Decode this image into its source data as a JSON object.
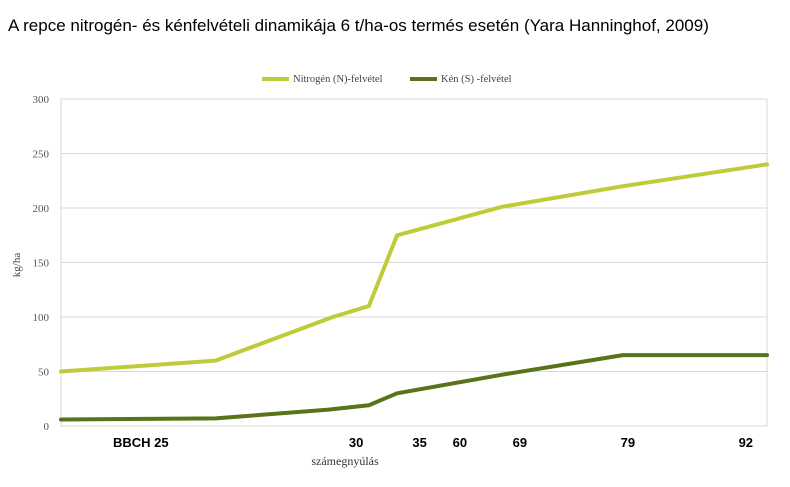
{
  "title": "A repce nitrogén- és kénfelvételi dinamikája 6 t/ha-os termés esetén (Yara Hanninghof, 2009)",
  "chart_data": {
    "type": "line",
    "title": "A repce nitrogén- és kénfelvételi dinamikája 6 t/ha-os termés esetén (Yara Hanninghof, 2009)",
    "xlabel": "számegnyúlás",
    "ylabel": "kg/ha",
    "ylim": [
      0,
      300
    ],
    "yticks": [
      0,
      50,
      100,
      150,
      200,
      250,
      300
    ],
    "xlim": [
      0,
      100
    ],
    "x_tick_labels": [
      {
        "label": "BBCH 25",
        "x": 11.3
      },
      {
        "label": "30",
        "x": 41.8
      },
      {
        "label": "35",
        "x": 50.8
      },
      {
        "label": "60",
        "x": 56.5
      },
      {
        "label": "69",
        "x": 65.0
      },
      {
        "label": "79",
        "x": 80.3
      },
      {
        "label": "92",
        "x": 97.0
      }
    ],
    "grid": true,
    "legend_position": "top",
    "series": [
      {
        "name": "Nitrogén (N)-felvétel",
        "color": "#bfcc3a",
        "x": [
          0,
          21.9,
          38.5,
          43.6,
          47.6,
          62.4,
          79.6,
          100
        ],
        "values": [
          50,
          60,
          100,
          110,
          175,
          201,
          220,
          240
        ]
      },
      {
        "name": "Kén (S) -felvétel",
        "color": "#5a7219",
        "x": [
          0,
          21.9,
          37.9,
          43.6,
          47.6,
          62.4,
          79.6,
          100
        ],
        "values": [
          6,
          7,
          15,
          19,
          30,
          47,
          65,
          65
        ]
      }
    ]
  }
}
